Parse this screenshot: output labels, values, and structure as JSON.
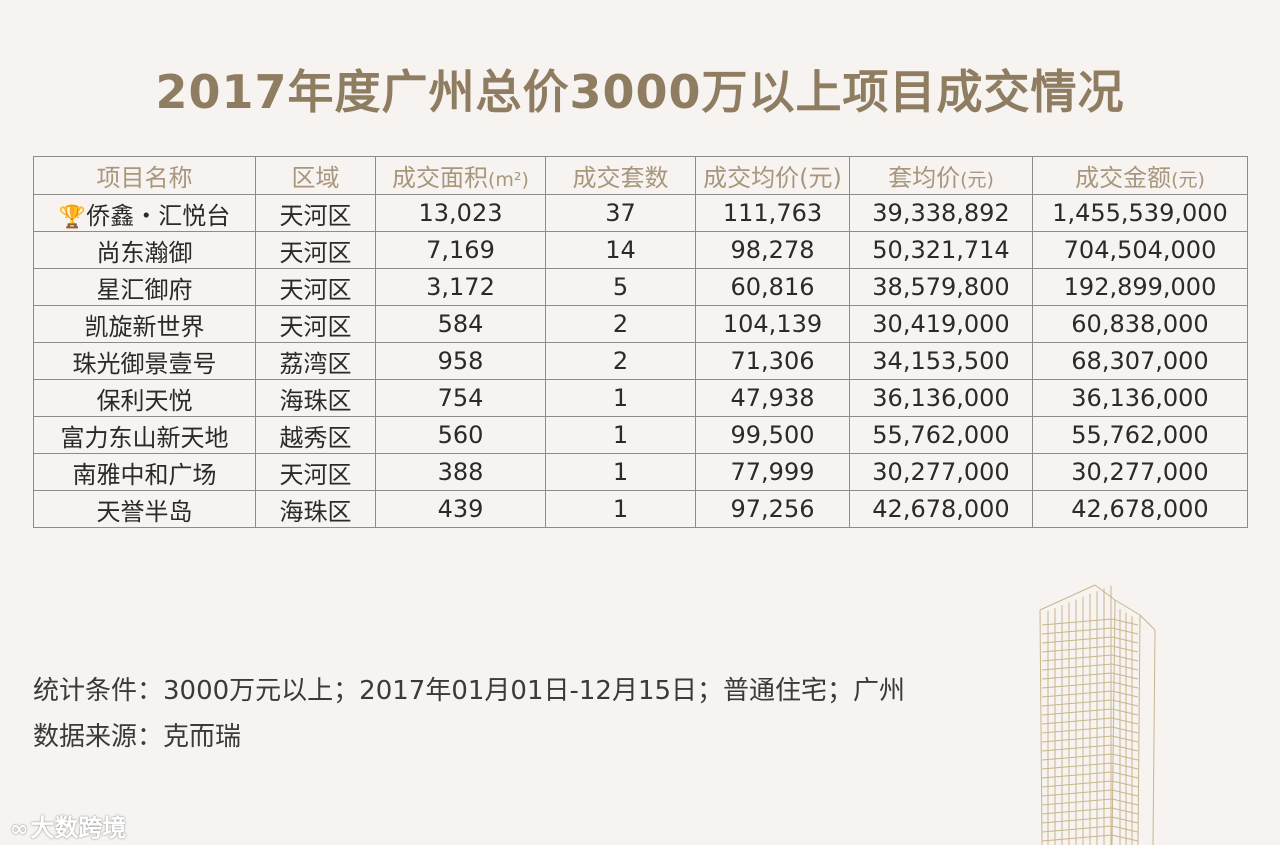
{
  "title": "2017年度广州总价3000万以上项目成交情况",
  "table": {
    "headers": {
      "name": "项目名称",
      "district": "区域",
      "area": "成交面积",
      "area_unit": "(m²)",
      "units": "成交套数",
      "avg_price": "成交均价(元)",
      "unit_price": "套均价",
      "unit_price_unit": "(元)",
      "total": "成交金额",
      "total_unit": "(元)"
    },
    "rows": [
      {
        "name": "侨鑫・汇悦台",
        "district": "天河区",
        "area": "13,023",
        "units": "37",
        "avg_price": "111,763",
        "unit_price": "39,338,892",
        "total": "1,455,539,000"
      },
      {
        "name": "尚东瀚御",
        "district": "天河区",
        "area": "7,169",
        "units": "14",
        "avg_price": "98,278",
        "unit_price": "50,321,714",
        "total": "704,504,000"
      },
      {
        "name": "星汇御府",
        "district": "天河区",
        "area": "3,172",
        "units": "5",
        "avg_price": "60,816",
        "unit_price": "38,579,800",
        "total": "192,899,000"
      },
      {
        "name": "凯旋新世界",
        "district": "天河区",
        "area": "584",
        "units": "2",
        "avg_price": "104,139",
        "unit_price": "30,419,000",
        "total": "60,838,000"
      },
      {
        "name": "珠光御景壹号",
        "district": "荔湾区",
        "area": "958",
        "units": "2",
        "avg_price": "71,306",
        "unit_price": "34,153,500",
        "total": "68,307,000"
      },
      {
        "name": "保利天悦",
        "district": "海珠区",
        "area": "754",
        "units": "1",
        "avg_price": "47,938",
        "unit_price": "36,136,000",
        "total": "36,136,000"
      },
      {
        "name": "富力东山新天地",
        "district": "越秀区",
        "area": "560",
        "units": "1",
        "avg_price": "99,500",
        "unit_price": "55,762,000",
        "total": "55,762,000"
      },
      {
        "name": "南雅中和广场",
        "district": "天河区",
        "area": "388",
        "units": "1",
        "avg_price": "77,999",
        "unit_price": "30,277,000",
        "total": "30,277,000"
      },
      {
        "name": "天誉半岛",
        "district": "海珠区",
        "area": "439",
        "units": "1",
        "avg_price": "97,256",
        "unit_price": "42,678,000",
        "total": "42,678,000"
      }
    ]
  },
  "footer": {
    "conditions": "统计条件：3000万元以上；2017年01月01日-12月15日；普通住宅；广州",
    "source": "数据来源：克而瑞"
  },
  "logo": {
    "text": "大数跨境"
  },
  "icons": {
    "trophy": "trophy-icon",
    "building": "building-illustration"
  },
  "colors": {
    "title": "#8f7d62",
    "header_text": "#a8967d",
    "background": "#f7f3f0",
    "building_line": "#c8b68c"
  }
}
